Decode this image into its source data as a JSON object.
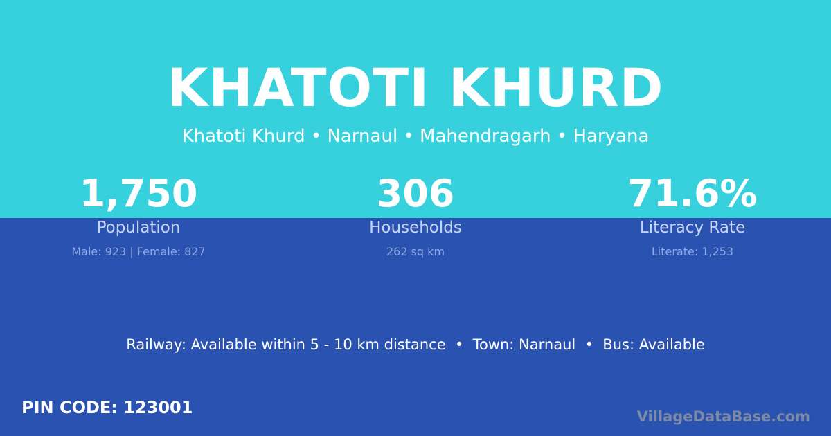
{
  "colors": {
    "top": "#36D1DC",
    "bottom": "#2A52B0"
  },
  "title": "KHATOTI KHURD",
  "subtitle": "Khatoti Khurd • Narnaul • Mahendragarh • Haryana",
  "stats": [
    {
      "value": "1,750",
      "label": "Population",
      "sub": "Male: 923 | Female: 827"
    },
    {
      "value": "306",
      "label": "Households",
      "sub": "262 sq km"
    },
    {
      "value": "71.6%",
      "label": "Literacy Rate",
      "sub": "Literate: 1,253"
    }
  ],
  "transport": "Railway: Available within 5 - 10 km distance  •  Town: Narnaul  •  Bus: Available",
  "pin": "PIN CODE: 123001",
  "brand": "VillageDataBase.com"
}
